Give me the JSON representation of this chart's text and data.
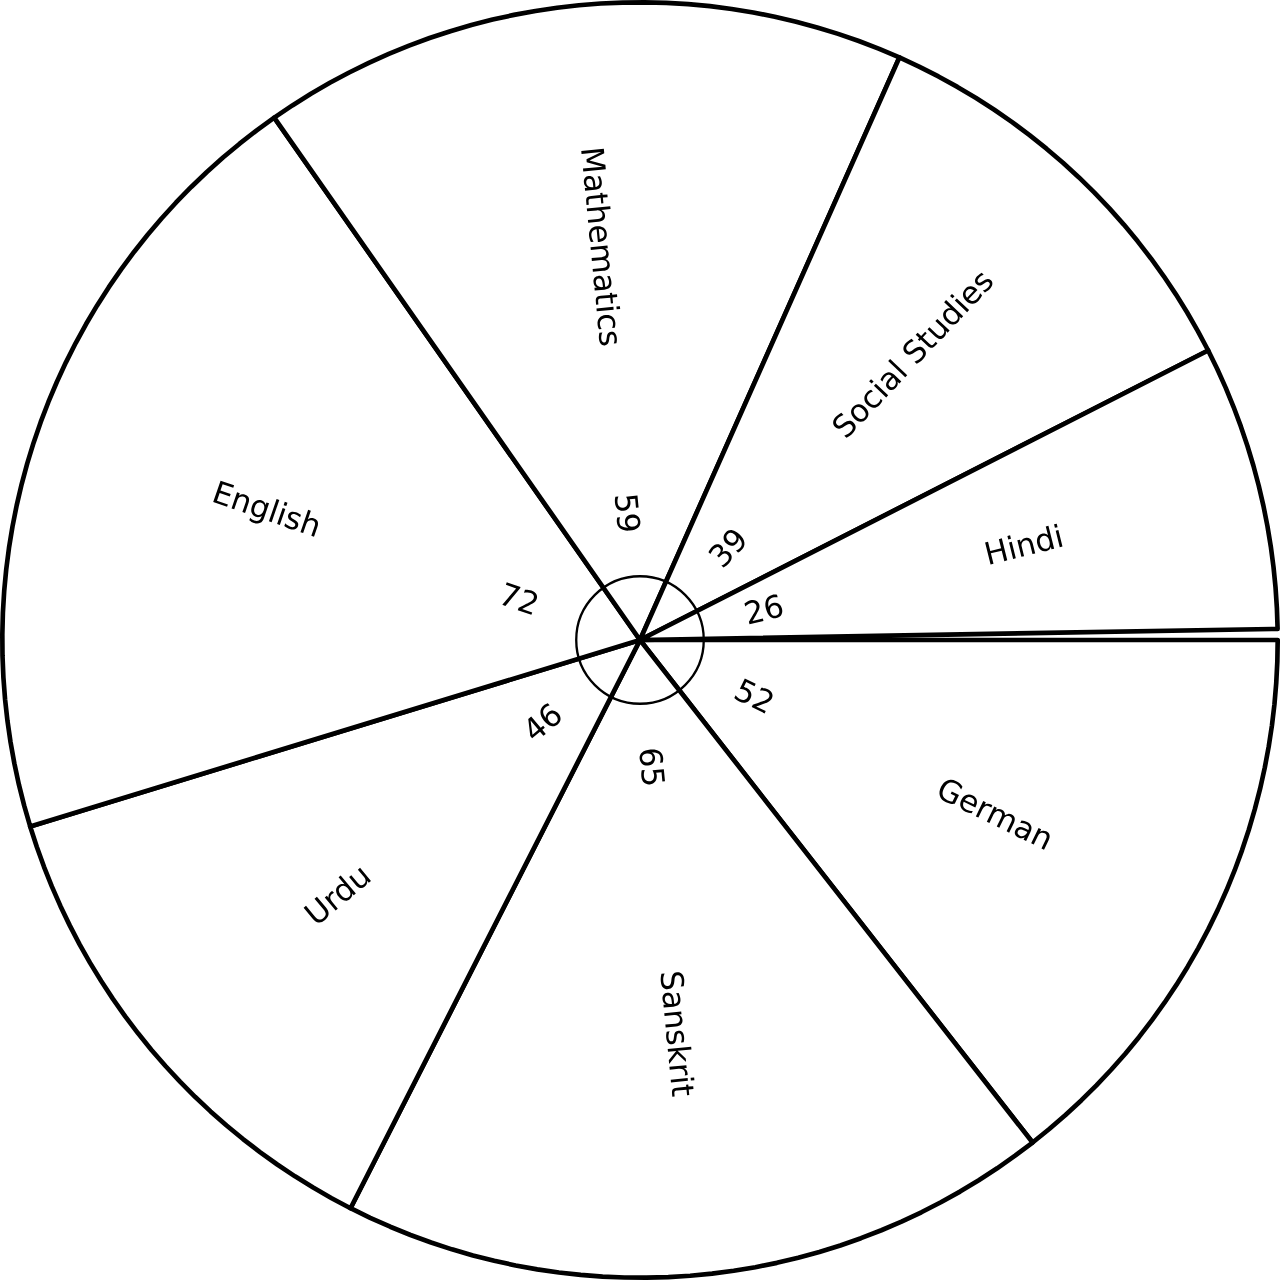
{
  "chart_data": {
    "type": "pie",
    "categories": [
      "German",
      "Sanskrit",
      "Urdu",
      "English",
      "Mathematics",
      "Social Studies",
      "Hindi"
    ],
    "values": [
      52,
      65,
      46,
      72,
      59,
      39,
      26
    ],
    "colors": [
      "#ffffff",
      "#ffffff",
      "#ffffff",
      "#ffffff",
      "#ffffff",
      "#ffffff",
      "#ffffff"
    ],
    "data_labels": true
  }
}
